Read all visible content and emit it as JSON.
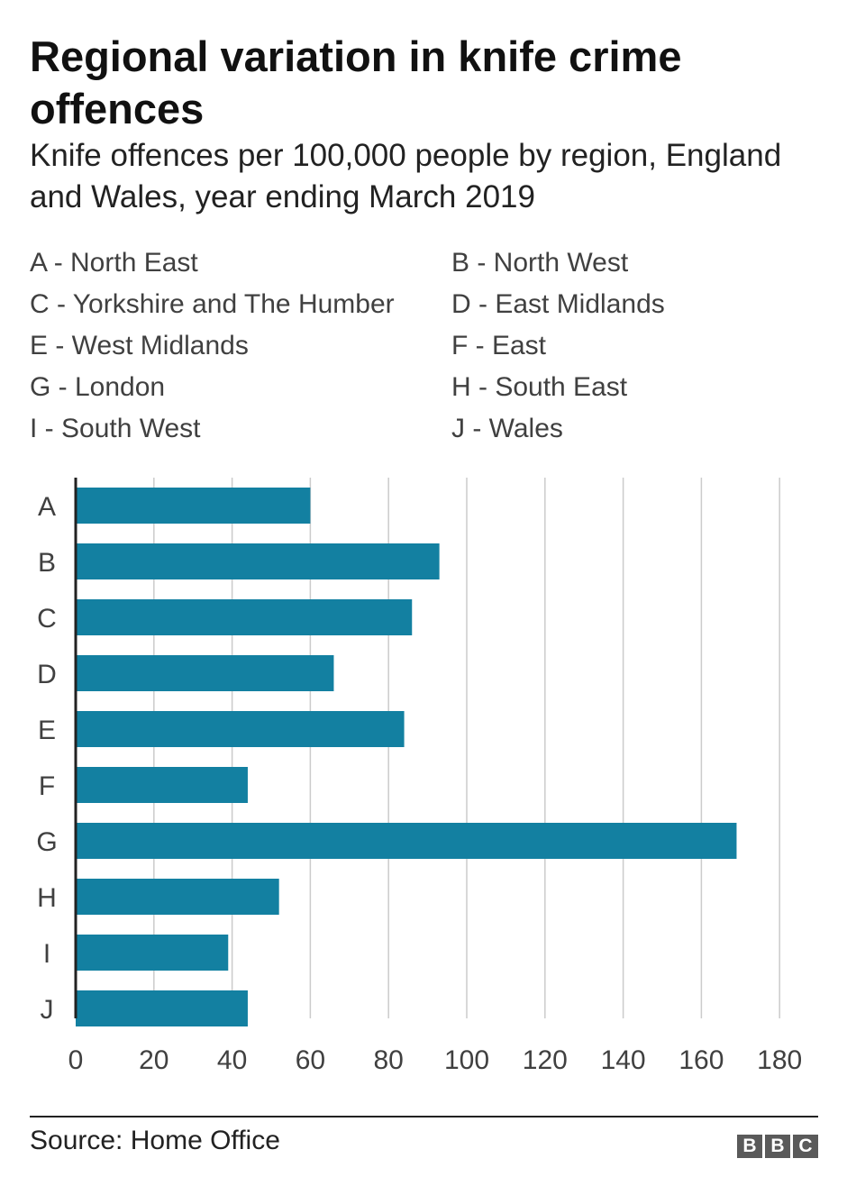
{
  "title": "Regional variation in knife crime offences",
  "subtitle": "Knife offences per 100,000 people by region, England and Wales, year ending March 2019",
  "key": [
    {
      "code": "A",
      "text": "A - North East"
    },
    {
      "code": "B",
      "text": "B - North West"
    },
    {
      "code": "C",
      "text": "C - Yorkshire and The Humber"
    },
    {
      "code": "D",
      "text": "D - East Midlands"
    },
    {
      "code": "E",
      "text": "E - West Midlands"
    },
    {
      "code": "F",
      "text": "F - East"
    },
    {
      "code": "G",
      "text": "G - London"
    },
    {
      "code": "H",
      "text": "H - South East"
    },
    {
      "code": "I",
      "text": "I - South West"
    },
    {
      "code": "J",
      "text": "J - Wales"
    }
  ],
  "chart_data": {
    "type": "bar",
    "orientation": "horizontal",
    "categories": [
      "A",
      "B",
      "C",
      "D",
      "E",
      "F",
      "G",
      "H",
      "I",
      "J"
    ],
    "values": [
      60,
      93,
      86,
      66,
      84,
      44,
      169,
      52,
      39,
      44
    ],
    "xlim": [
      0,
      180
    ],
    "xticks": [
      0,
      20,
      40,
      60,
      80,
      100,
      120,
      140,
      160,
      180
    ],
    "grid": true,
    "bar_color": "#1380a1",
    "gridline_color": "#cbcbcb",
    "axis_color": "#222222"
  },
  "source": "Source: Home Office",
  "logo": [
    "B",
    "B",
    "C"
  ]
}
